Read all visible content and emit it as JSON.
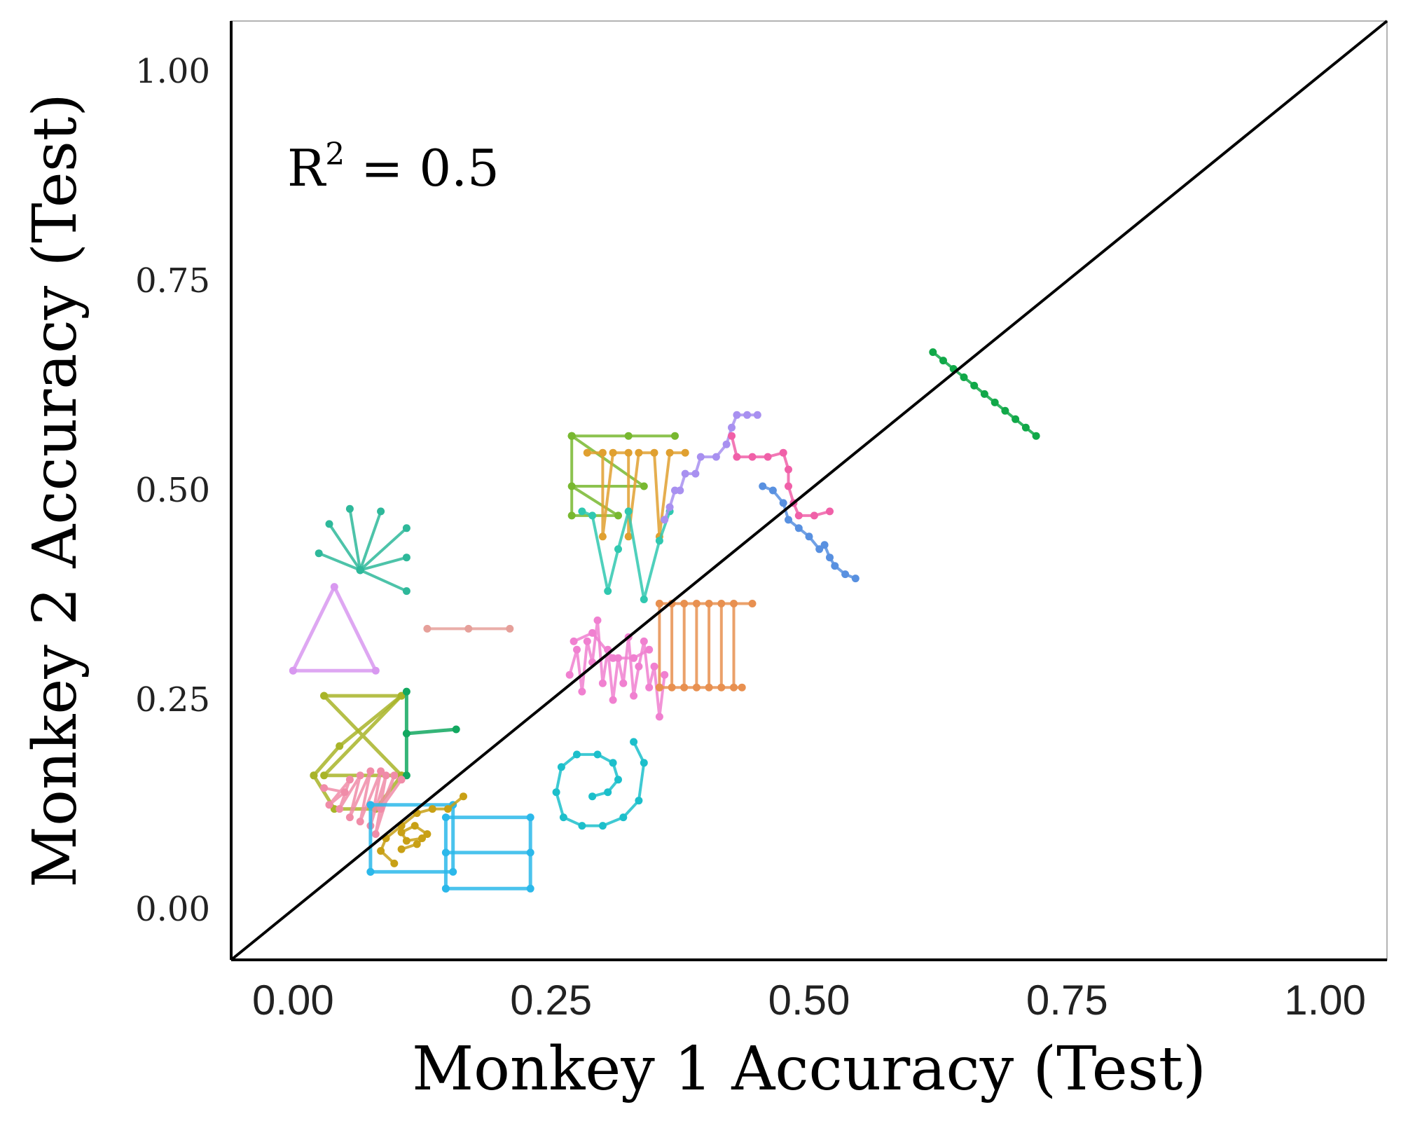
{
  "chart_data": {
    "type": "scatter",
    "title": "",
    "xlabel": "Monkey 1 Accuracy (Test)",
    "ylabel": "Monkey 2 Accuracy (Test)",
    "xlim": [
      -0.06,
      1.06
    ],
    "ylim": [
      -0.06,
      1.06
    ],
    "x_ticks": [
      "0.00",
      "0.25",
      "0.50",
      "0.75",
      "1.00"
    ],
    "y_ticks": [
      "0.00",
      "0.25",
      "0.50",
      "0.75",
      "1.00"
    ],
    "x_tick_values": [
      0,
      0.25,
      0.5,
      0.75,
      1.0
    ],
    "y_tick_values": [
      0,
      0.25,
      0.5,
      0.75,
      1.0
    ],
    "grid": false,
    "reference_line": {
      "type": "identity",
      "from": [
        -0.06,
        -0.06
      ],
      "to": [
        1.06,
        1.06
      ]
    },
    "annotation": {
      "text": "R² = 0.5",
      "prefix": "R",
      "sup": "2",
      "suffix": " = 0.5"
    },
    "series": [
      {
        "color": "#E6A09A",
        "width": 4,
        "points": [
          [
            0.13,
            0.335
          ],
          [
            0.17,
            0.335
          ],
          [
            0.21,
            0.335
          ]
        ]
      },
      {
        "color": "#D898F0",
        "width": 5,
        "points": [
          [
            0.0,
            0.285
          ],
          [
            0.04,
            0.385
          ],
          [
            0.08,
            0.285
          ],
          [
            0.0,
            0.285
          ]
        ]
      },
      {
        "color": "#2EB89A",
        "width": 4,
        "points": [
          [
            0.065,
            0.405
          ],
          [
            0.025,
            0.425
          ]
        ]
      },
      {
        "color": "#2EB89A",
        "width": 4,
        "points": [
          [
            0.065,
            0.405
          ],
          [
            0.035,
            0.46
          ]
        ]
      },
      {
        "color": "#2EB89A",
        "width": 4,
        "points": [
          [
            0.065,
            0.405
          ],
          [
            0.055,
            0.478
          ]
        ]
      },
      {
        "color": "#2EB89A",
        "width": 4,
        "points": [
          [
            0.065,
            0.405
          ],
          [
            0.085,
            0.475
          ]
        ]
      },
      {
        "color": "#2EB89A",
        "width": 4,
        "points": [
          [
            0.065,
            0.405
          ],
          [
            0.11,
            0.455
          ]
        ]
      },
      {
        "color": "#2EB89A",
        "width": 4,
        "points": [
          [
            0.065,
            0.405
          ],
          [
            0.11,
            0.42
          ]
        ]
      },
      {
        "color": "#2EB89A",
        "width": 4,
        "points": [
          [
            0.065,
            0.405
          ],
          [
            0.11,
            0.38
          ]
        ]
      },
      {
        "color": "#A8B428",
        "width": 5,
        "points": [
          [
            0.03,
            0.255
          ],
          [
            0.105,
            0.255
          ],
          [
            0.03,
            0.16
          ],
          [
            0.105,
            0.16
          ],
          [
            0.03,
            0.255
          ]
        ]
      },
      {
        "color": "#A8B428",
        "width": 5,
        "points": [
          [
            0.02,
            0.16
          ],
          [
            0.045,
            0.195
          ],
          [
            0.105,
            0.255
          ]
        ]
      },
      {
        "color": "#A8B428",
        "width": 5,
        "points": [
          [
            0.02,
            0.16
          ],
          [
            0.04,
            0.12
          ],
          [
            0.08,
            0.12
          ],
          [
            0.105,
            0.16
          ]
        ]
      },
      {
        "color": "#12A860",
        "width": 5,
        "points": [
          [
            0.11,
            0.26
          ],
          [
            0.11,
            0.16
          ]
        ]
      },
      {
        "color": "#12A860",
        "width": 5,
        "points": [
          [
            0.11,
            0.21
          ],
          [
            0.158,
            0.215
          ]
        ]
      },
      {
        "color": "#F08CA8",
        "width": 4,
        "points": [
          [
            0.03,
            0.145
          ],
          [
            0.05,
            0.14
          ],
          [
            0.035,
            0.125
          ],
          [
            0.055,
            0.155
          ],
          [
            0.045,
            0.12
          ],
          [
            0.065,
            0.16
          ],
          [
            0.055,
            0.11
          ],
          [
            0.075,
            0.165
          ],
          [
            0.065,
            0.105
          ],
          [
            0.085,
            0.165
          ],
          [
            0.075,
            0.1
          ],
          [
            0.09,
            0.16
          ],
          [
            0.08,
            0.09
          ],
          [
            0.098,
            0.16
          ],
          [
            0.085,
            0.12
          ],
          [
            0.105,
            0.155
          ]
        ]
      },
      {
        "color": "#2BB8EA",
        "width": 5,
        "points": [
          [
            0.075,
            0.045
          ],
          [
            0.075,
            0.125
          ],
          [
            0.155,
            0.125
          ],
          [
            0.155,
            0.045
          ],
          [
            0.075,
            0.045
          ]
        ]
      },
      {
        "color": "#2BB8EA",
        "width": 5,
        "points": [
          [
            0.148,
            0.025
          ],
          [
            0.148,
            0.11
          ],
          [
            0.23,
            0.11
          ],
          [
            0.23,
            0.025
          ],
          [
            0.148,
            0.025
          ]
        ]
      },
      {
        "color": "#2BB8EA",
        "width": 5,
        "points": [
          [
            0.148,
            0.068
          ],
          [
            0.23,
            0.068
          ]
        ]
      },
      {
        "color": "#C8A015",
        "width": 4,
        "points": [
          [
            0.098,
            0.055
          ],
          [
            0.085,
            0.07
          ],
          [
            0.09,
            0.085
          ],
          [
            0.105,
            0.1
          ],
          [
            0.12,
            0.115
          ],
          [
            0.135,
            0.12
          ],
          [
            0.15,
            0.12
          ],
          [
            0.165,
            0.135
          ]
        ]
      },
      {
        "color": "#C8A015",
        "width": 4,
        "points": [
          [
            0.105,
            0.072
          ],
          [
            0.12,
            0.078
          ],
          [
            0.13,
            0.09
          ],
          [
            0.118,
            0.1
          ],
          [
            0.105,
            0.092
          ],
          [
            0.11,
            0.082
          ],
          [
            0.125,
            0.085
          ]
        ]
      },
      {
        "color": "#1CBFCB",
        "width": 4,
        "points": [
          [
            0.33,
            0.2
          ],
          [
            0.34,
            0.175
          ],
          [
            0.335,
            0.13
          ],
          [
            0.32,
            0.11
          ],
          [
            0.3,
            0.1
          ],
          [
            0.28,
            0.1
          ],
          [
            0.262,
            0.11
          ],
          [
            0.255,
            0.14
          ],
          [
            0.26,
            0.17
          ],
          [
            0.275,
            0.185
          ],
          [
            0.295,
            0.185
          ],
          [
            0.31,
            0.175
          ],
          [
            0.315,
            0.155
          ],
          [
            0.305,
            0.14
          ],
          [
            0.29,
            0.135
          ]
        ]
      },
      {
        "color": "#F080D0",
        "width": 4,
        "points": [
          [
            0.268,
            0.28
          ],
          [
            0.275,
            0.31
          ],
          [
            0.28,
            0.26
          ],
          [
            0.285,
            0.32
          ],
          [
            0.29,
            0.295
          ],
          [
            0.295,
            0.345
          ],
          [
            0.3,
            0.27
          ],
          [
            0.305,
            0.31
          ],
          [
            0.31,
            0.25
          ],
          [
            0.315,
            0.3
          ],
          [
            0.32,
            0.27
          ],
          [
            0.325,
            0.325
          ],
          [
            0.33,
            0.255
          ],
          [
            0.335,
            0.29
          ],
          [
            0.34,
            0.32
          ],
          [
            0.345,
            0.265
          ],
          [
            0.35,
            0.29
          ],
          [
            0.355,
            0.23
          ],
          [
            0.36,
            0.28
          ]
        ]
      },
      {
        "color": "#F080D0",
        "width": 4,
        "points": [
          [
            0.272,
            0.32
          ],
          [
            0.29,
            0.33
          ],
          [
            0.31,
            0.3
          ],
          [
            0.33,
            0.3
          ],
          [
            0.345,
            0.31
          ]
        ]
      },
      {
        "color": "#E89050",
        "width": 4,
        "points": [
          [
            0.355,
            0.365
          ],
          [
            0.355,
            0.265
          ]
        ]
      },
      {
        "color": "#E89050",
        "width": 4,
        "points": [
          [
            0.367,
            0.365
          ],
          [
            0.367,
            0.265
          ]
        ]
      },
      {
        "color": "#E89050",
        "width": 4,
        "points": [
          [
            0.379,
            0.365
          ],
          [
            0.379,
            0.265
          ]
        ]
      },
      {
        "color": "#E89050",
        "width": 4,
        "points": [
          [
            0.391,
            0.365
          ],
          [
            0.391,
            0.265
          ]
        ]
      },
      {
        "color": "#E89050",
        "width": 4,
        "points": [
          [
            0.403,
            0.365
          ],
          [
            0.403,
            0.265
          ]
        ]
      },
      {
        "color": "#E89050",
        "width": 4,
        "points": [
          [
            0.415,
            0.365
          ],
          [
            0.415,
            0.265
          ]
        ]
      },
      {
        "color": "#E89050",
        "width": 4,
        "points": [
          [
            0.427,
            0.365
          ],
          [
            0.427,
            0.265
          ]
        ]
      },
      {
        "color": "#E89050",
        "width": 4,
        "points": [
          [
            0.355,
            0.365
          ],
          [
            0.445,
            0.365
          ]
        ]
      },
      {
        "color": "#E89050",
        "width": 4,
        "points": [
          [
            0.355,
            0.265
          ],
          [
            0.435,
            0.265
          ]
        ]
      },
      {
        "color": "#78B830",
        "width": 4,
        "points": [
          [
            0.27,
            0.565
          ],
          [
            0.325,
            0.565
          ],
          [
            0.37,
            0.565
          ]
        ]
      },
      {
        "color": "#78B830",
        "width": 4,
        "points": [
          [
            0.27,
            0.565
          ],
          [
            0.34,
            0.505
          ],
          [
            0.27,
            0.505
          ],
          [
            0.315,
            0.47
          ],
          [
            0.27,
            0.47
          ],
          [
            0.27,
            0.565
          ]
        ]
      },
      {
        "color": "#E0A030",
        "width": 4,
        "points": [
          [
            0.285,
            0.545
          ],
          [
            0.3,
            0.545
          ],
          [
            0.3,
            0.445
          ],
          [
            0.31,
            0.545
          ],
          [
            0.325,
            0.545
          ],
          [
            0.325,
            0.445
          ],
          [
            0.335,
            0.545
          ],
          [
            0.35,
            0.545
          ],
          [
            0.355,
            0.445
          ],
          [
            0.365,
            0.545
          ],
          [
            0.38,
            0.545
          ]
        ]
      },
      {
        "color": "#30C8B0",
        "width": 4,
        "points": [
          [
            0.28,
            0.475
          ],
          [
            0.29,
            0.47
          ],
          [
            0.305,
            0.38
          ],
          [
            0.315,
            0.43
          ],
          [
            0.325,
            0.475
          ],
          [
            0.34,
            0.37
          ],
          [
            0.355,
            0.44
          ],
          [
            0.365,
            0.475
          ]
        ]
      },
      {
        "color": "#A890F0",
        "width": 4,
        "points": [
          [
            0.36,
            0.465
          ],
          [
            0.365,
            0.48
          ],
          [
            0.37,
            0.5
          ],
          [
            0.375,
            0.5
          ],
          [
            0.38,
            0.52
          ],
          [
            0.39,
            0.52
          ],
          [
            0.395,
            0.54
          ],
          [
            0.41,
            0.54
          ],
          [
            0.42,
            0.555
          ],
          [
            0.425,
            0.575
          ],
          [
            0.43,
            0.59
          ],
          [
            0.44,
            0.59
          ],
          [
            0.45,
            0.59
          ]
        ]
      },
      {
        "color": "#F060A8",
        "width": 4,
        "points": [
          [
            0.425,
            0.565
          ],
          [
            0.43,
            0.54
          ],
          [
            0.445,
            0.54
          ],
          [
            0.46,
            0.54
          ],
          [
            0.475,
            0.545
          ],
          [
            0.48,
            0.525
          ],
          [
            0.48,
            0.505
          ],
          [
            0.485,
            0.485
          ],
          [
            0.49,
            0.47
          ],
          [
            0.505,
            0.47
          ],
          [
            0.52,
            0.475
          ]
        ]
      },
      {
        "color": "#5890E0",
        "width": 4,
        "points": [
          [
            0.455,
            0.505
          ],
          [
            0.465,
            0.5
          ],
          [
            0.475,
            0.485
          ],
          [
            0.48,
            0.465
          ],
          [
            0.49,
            0.455
          ],
          [
            0.5,
            0.445
          ],
          [
            0.51,
            0.43
          ],
          [
            0.515,
            0.435
          ],
          [
            0.52,
            0.42
          ],
          [
            0.525,
            0.41
          ],
          [
            0.535,
            0.4
          ],
          [
            0.545,
            0.395
          ]
        ]
      },
      {
        "color": "#10A848",
        "width": 4,
        "points": [
          [
            0.62,
            0.665
          ],
          [
            0.63,
            0.655
          ],
          [
            0.64,
            0.645
          ],
          [
            0.65,
            0.635
          ],
          [
            0.66,
            0.625
          ],
          [
            0.67,
            0.615
          ],
          [
            0.68,
            0.605
          ],
          [
            0.69,
            0.595
          ],
          [
            0.7,
            0.585
          ],
          [
            0.71,
            0.575
          ],
          [
            0.72,
            0.565
          ]
        ]
      }
    ]
  }
}
